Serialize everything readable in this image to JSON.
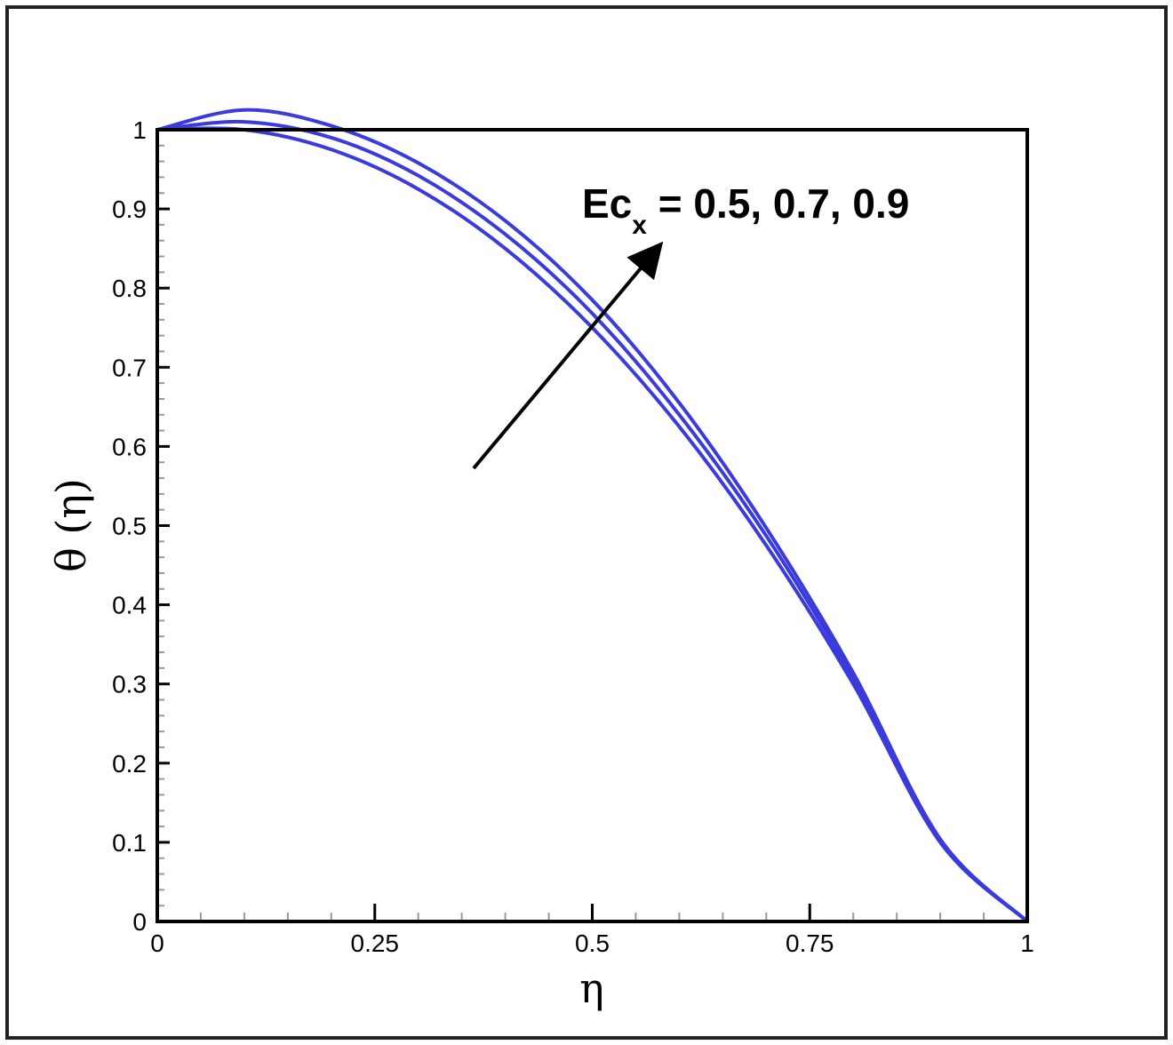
{
  "chart_data": {
    "type": "line",
    "title": "",
    "xlabel": "η",
    "ylabel": "θ (η)",
    "xlim": [
      0,
      1
    ],
    "ylim": [
      0,
      1
    ],
    "grid": false,
    "x_ticks": [
      "0",
      "0.25",
      "0.5",
      "0.75",
      "1"
    ],
    "y_ticks": [
      "0",
      "0.1",
      "0.2",
      "0.3",
      "0.4",
      "0.5",
      "0.6",
      "0.7",
      "0.8",
      "0.9",
      "1"
    ],
    "line_color": "#3b3bdc",
    "annotation": {
      "text_main": "Ec",
      "text_sub": "x",
      "text_rest": " = 0.5, 0.7, 0.9",
      "arrow": "increasing"
    },
    "x": [
      0,
      0.1,
      0.2,
      0.3,
      0.4,
      0.5,
      0.6,
      0.7,
      0.8,
      0.9,
      1.0
    ],
    "series": [
      {
        "values": [
          1.0,
          1.0,
          0.975,
          0.925,
          0.85,
          0.75,
          0.625,
          0.475,
          0.3,
          0.1,
          0.0
        ]
      },
      {
        "values": [
          1.0,
          1.01,
          0.99,
          0.942,
          0.868,
          0.768,
          0.64,
          0.487,
          0.307,
          0.102,
          0.0
        ]
      },
      {
        "values": [
          1.0,
          1.025,
          1.005,
          0.958,
          0.885,
          0.785,
          0.655,
          0.497,
          0.314,
          0.104,
          0.0
        ]
      }
    ]
  }
}
